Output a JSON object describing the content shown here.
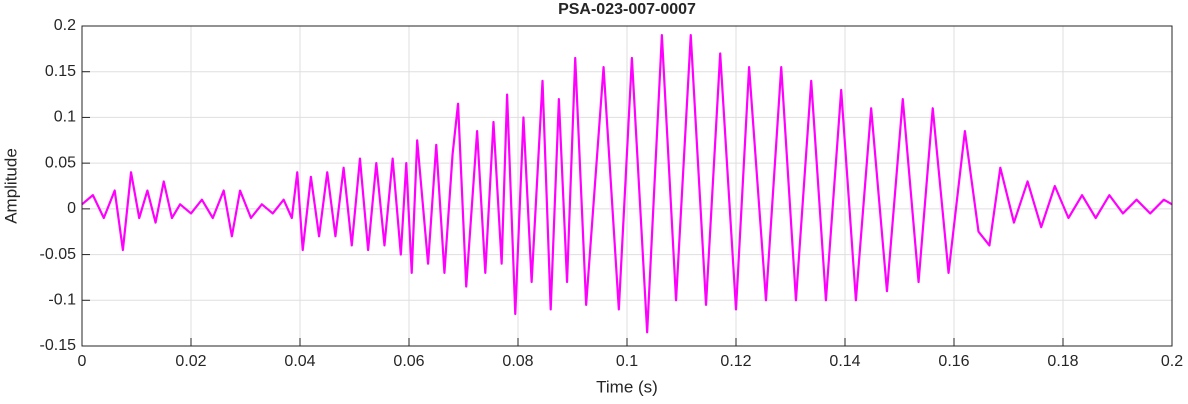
{
  "chart_data": {
    "type": "line",
    "title": "PSA-023-007-0007",
    "x_label": "Time (s)",
    "y_label": "Amplitude",
    "x": [
      0,
      0.002,
      0.004,
      0.006,
      0.0075,
      0.009,
      0.0105,
      0.012,
      0.0135,
      0.015,
      0.0165,
      0.018,
      0.02,
      0.022,
      0.024,
      0.026,
      0.0275,
      0.029,
      0.031,
      0.033,
      0.035,
      0.037,
      0.0385,
      0.0395,
      0.0405,
      0.042,
      0.0435,
      0.045,
      0.0465,
      0.048,
      0.0495,
      0.051,
      0.0525,
      0.054,
      0.0555,
      0.057,
      0.0585,
      0.0595,
      0.0605,
      0.0615,
      0.0635,
      0.065,
      0.0665,
      0.068,
      0.069,
      0.0705,
      0.0725,
      0.074,
      0.0755,
      0.077,
      0.078,
      0.0795,
      0.081,
      0.0825,
      0.0845,
      0.086,
      0.0875,
      0.089,
      0.0905,
      0.0925,
      0.0957,
      0.0985,
      0.1009,
      0.1037,
      0.1064,
      0.109,
      0.1117,
      0.1145,
      0.1171,
      0.12,
      0.1224,
      0.1255,
      0.1283,
      0.131,
      0.1338,
      0.1365,
      0.1393,
      0.142,
      0.1448,
      0.1477,
      0.1506,
      0.1535,
      0.1561,
      0.159,
      0.162,
      0.1645,
      0.1665,
      0.1685,
      0.171,
      0.1735,
      0.176,
      0.1785,
      0.181,
      0.1835,
      0.186,
      0.1885,
      0.191,
      0.1935,
      0.196,
      0.1985,
      0.2
    ],
    "values": [
      0.005,
      0.015,
      -0.01,
      0.02,
      -0.045,
      0.04,
      -0.01,
      0.02,
      -0.015,
      0.03,
      -0.01,
      0.005,
      -0.005,
      0.01,
      -0.01,
      0.02,
      -0.03,
      0.02,
      -0.01,
      0.005,
      -0.005,
      0.01,
      -0.01,
      0.04,
      -0.045,
      0.035,
      -0.03,
      0.04,
      -0.03,
      0.045,
      -0.04,
      0.055,
      -0.045,
      0.05,
      -0.04,
      0.055,
      -0.05,
      0.05,
      -0.07,
      0.075,
      -0.06,
      0.07,
      -0.07,
      0.06,
      0.115,
      -0.085,
      0.085,
      -0.07,
      0.095,
      -0.06,
      0.125,
      -0.115,
      0.1,
      -0.08,
      0.14,
      -0.11,
      0.12,
      -0.08,
      0.165,
      -0.105,
      0.155,
      -0.11,
      0.165,
      -0.135,
      0.19,
      -0.1,
      0.19,
      -0.105,
      0.17,
      -0.11,
      0.155,
      -0.1,
      0.155,
      -0.1,
      0.14,
      -0.1,
      0.13,
      -0.1,
      0.11,
      -0.09,
      0.12,
      -0.08,
      0.11,
      -0.07,
      0.085,
      -0.025,
      -0.04,
      0.045,
      -0.015,
      0.03,
      -0.02,
      0.025,
      -0.01,
      0.015,
      -0.01,
      0.015,
      -0.005,
      0.01,
      -0.005,
      0.01,
      0.005
    ],
    "color": "#ff00ff",
    "xlim": [
      0,
      0.2
    ],
    "xticks": [
      0,
      0.02,
      0.04,
      0.06,
      0.08,
      0.1,
      0.12,
      0.14,
      0.16,
      0.18,
      0.2
    ],
    "ylim": [
      -0.15,
      0.2
    ],
    "yticks": [
      -0.15,
      -0.1,
      -0.05,
      0,
      0.05,
      0.1,
      0.15,
      0.2
    ],
    "grid": true
  }
}
